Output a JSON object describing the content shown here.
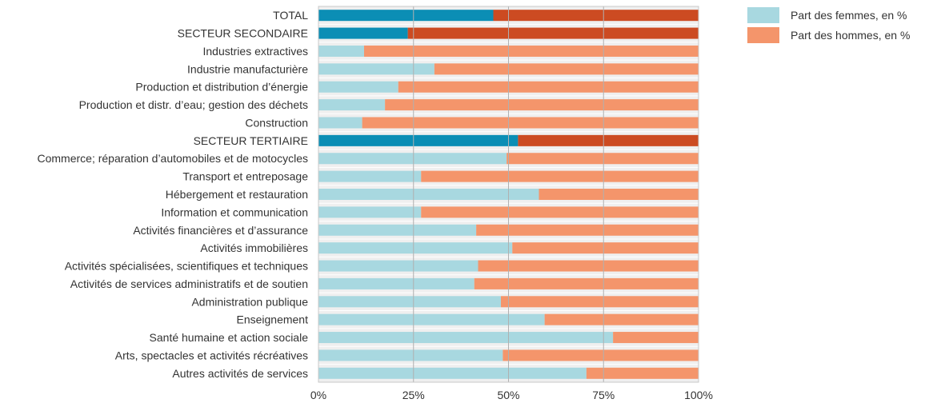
{
  "chart_data": {
    "type": "bar",
    "orientation": "horizontal",
    "stacked": true,
    "categories": [
      "TOTAL",
      "SECTEUR SECONDAIRE",
      "Industries extractives",
      "Industrie manufacturière",
      "Production et distribution d’énergie",
      "Production et distr. d’eau; gestion des déchets",
      "Construction",
      "SECTEUR TERTIAIRE",
      "Commerce; réparation d’automobiles et de motocycles",
      "Transport et entreposage",
      "Hébergement et restauration",
      "Information et communication",
      "Activités financières et d’assurance",
      "Activités immobilières",
      "Activités spécialisées, scientifiques et techniques",
      "Activités de services administratifs et de soutien",
      "Administration publique",
      "Enseignement",
      "Santé humaine et action sociale",
      "Arts, spectacles et activités récréatives",
      "Autres activités de services"
    ],
    "highlighted": [
      true,
      true,
      false,
      false,
      false,
      false,
      false,
      true,
      false,
      false,
      false,
      false,
      false,
      false,
      false,
      false,
      false,
      false,
      false,
      false,
      false
    ],
    "series": [
      {
        "name": "Part des femmes, en %",
        "values": [
          46,
          23.5,
          12,
          30.5,
          21,
          17.5,
          11.5,
          52.5,
          49.5,
          27,
          58,
          27,
          41.5,
          51,
          42,
          41,
          48,
          59.5,
          77.5,
          48.5,
          70.5
        ],
        "color": "#a8d8e0",
        "highlight_color": "#0b8eb5"
      },
      {
        "name": "Part des hommes, en %",
        "values": [
          54,
          76.5,
          88,
          69.5,
          79,
          82.5,
          88.5,
          47.5,
          50.5,
          73,
          42,
          73,
          58.5,
          49,
          58,
          59,
          52,
          40.5,
          22.5,
          51.5,
          29.5
        ],
        "color": "#f4956b",
        "highlight_color": "#cc4b22"
      }
    ],
    "xlim": [
      0,
      100
    ],
    "x_ticks": [
      "0%",
      "25%",
      "50%",
      "75%",
      "100%"
    ],
    "x_tick_values": [
      0,
      25,
      50,
      75,
      100
    ],
    "grid": true,
    "legend_position": "top-right",
    "title": "",
    "xlabel": "",
    "ylabel": ""
  }
}
